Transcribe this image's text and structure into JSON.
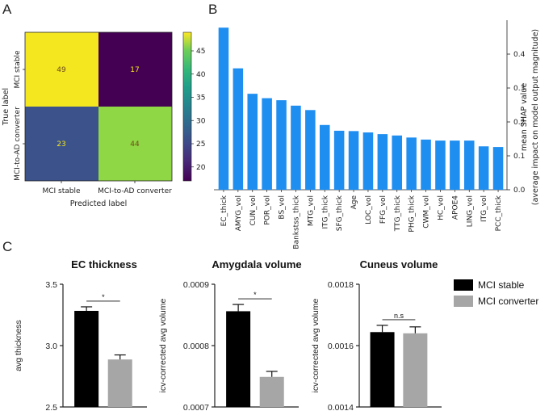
{
  "panels": {
    "a": "A",
    "b": "B",
    "c": "C"
  },
  "colors": {
    "yellow": "#f4e61f",
    "purple": "#440154",
    "blue_purple": "#3b528b",
    "green": "#8fd744",
    "shap_bar": "#1f8ef1",
    "stable": "#000000",
    "converter": "#a6a6a6"
  },
  "chart_data": [
    {
      "type": "heatmap",
      "id": "confusion",
      "xlabel": "Predicted label",
      "ylabel": "True label",
      "x_categories": [
        "MCI stable",
        "MCI-to-AD converter"
      ],
      "y_categories": [
        "MCI stable",
        "MCI-to-AD converter"
      ],
      "values": [
        [
          49,
          17
        ],
        [
          23,
          44
        ]
      ],
      "colorbar": {
        "range": [
          17,
          49
        ],
        "ticks": [
          20,
          25,
          30,
          35,
          40,
          45
        ]
      }
    },
    {
      "type": "bar",
      "id": "shap",
      "ylabel_line1": "mean SHAP value",
      "ylabel_line2": "(average impact on model output magnitude)",
      "ylim": [
        0,
        0.5
      ],
      "yticks": [
        "0.0",
        "0.1",
        "0.2",
        "0.3",
        "0.4"
      ],
      "categories": [
        "EC_thick",
        "AMYG_vol",
        "CUN_vol",
        "POR_vol",
        "BS_vol",
        "Bankstss_thick",
        "MTG_vol",
        "ITG_thick",
        "SFG_thick",
        "Age",
        "LOC_vol",
        "FFG_vol",
        "TTG_thick",
        "PHG_thick",
        "CWM_vol",
        "HC_vol",
        "APOE4",
        "LING_vol",
        "ITG_vol",
        "PCC_thick"
      ],
      "values": [
        0.478,
        0.358,
        0.283,
        0.27,
        0.264,
        0.248,
        0.235,
        0.191,
        0.174,
        0.173,
        0.169,
        0.164,
        0.16,
        0.154,
        0.148,
        0.145,
        0.145,
        0.145,
        0.128,
        0.126
      ]
    },
    {
      "type": "bar",
      "id": "ec",
      "title": "EC thickness",
      "ylabel": "avg thickness",
      "ylim": [
        2.5,
        3.5
      ],
      "yticks": [
        "2.5",
        "3.0",
        "3.5"
      ],
      "series": [
        {
          "name": "MCI stable",
          "value": 3.283,
          "err": 0.033
        },
        {
          "name": "MCI converter",
          "value": 2.887,
          "err": 0.037
        }
      ],
      "significance": "*"
    },
    {
      "type": "bar",
      "id": "amyg",
      "title": "Amygdala volume",
      "ylabel": "icv-corrected avg volume",
      "ylim": [
        0.0007,
        0.0009
      ],
      "yticks": [
        "0.0007",
        "0.0008",
        "0.0009"
      ],
      "series": [
        {
          "name": "MCI stable",
          "value": 0.000856,
          "err": 1.1e-05
        },
        {
          "name": "MCI converter",
          "value": 0.000749,
          "err": 9e-06
        }
      ],
      "significance": "*"
    },
    {
      "type": "bar",
      "id": "cun",
      "title": "Cuneus volume",
      "ylabel": "icv-corrected avg volume",
      "ylim": [
        0.0014,
        0.0018
      ],
      "yticks": [
        "0.0014",
        "0.0016",
        "0.0018"
      ],
      "series": [
        {
          "name": "MCI stable",
          "value": 0.001644,
          "err": 2.2e-05
        },
        {
          "name": "MCI converter",
          "value": 0.00164,
          "err": 2.1e-05
        }
      ],
      "significance": "n.s"
    }
  ],
  "legend": {
    "stable": "MCI stable",
    "converter": "MCI converter"
  }
}
